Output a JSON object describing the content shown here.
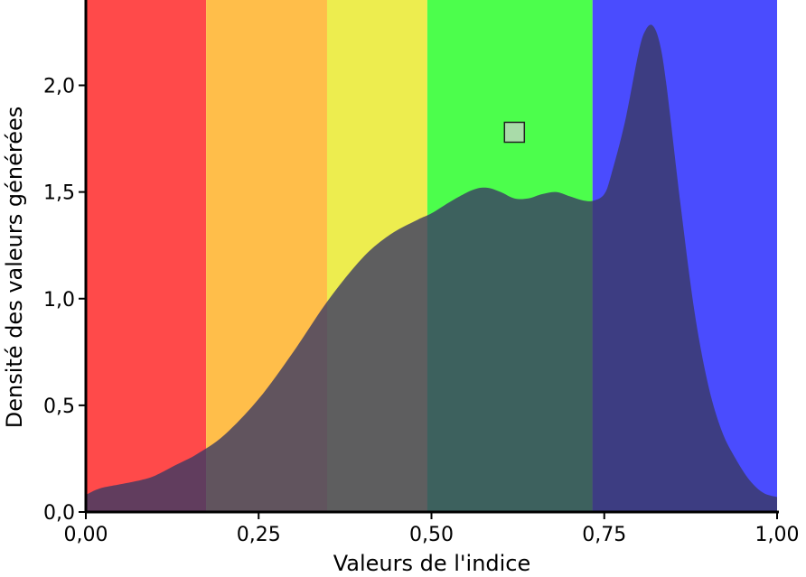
{
  "chart_data": {
    "type": "area",
    "title": "",
    "xlabel": "Valeurs de l'indice",
    "ylabel": "Densité des valeurs générées",
    "xlim": [
      0,
      1
    ],
    "ylim": [
      0,
      2.4
    ],
    "x_ticks": [
      {
        "value": 0,
        "label": "0,00"
      },
      {
        "value": 0.25,
        "label": "0,25"
      },
      {
        "value": 0.5,
        "label": "0,50"
      },
      {
        "value": 0.75,
        "label": "0,75"
      },
      {
        "value": 1,
        "label": "1,00"
      }
    ],
    "y_ticks": [
      {
        "value": 0,
        "label": "0,0"
      },
      {
        "value": 0.5,
        "label": "0,5"
      },
      {
        "value": 1,
        "label": "1,0"
      },
      {
        "value": 1.5,
        "label": "1,5"
      },
      {
        "value": 2,
        "label": "2,0"
      }
    ],
    "bands": [
      {
        "from": 0.0,
        "to": 0.174,
        "color": "#ff4a4a"
      },
      {
        "from": 0.174,
        "to": 0.349,
        "color": "#ffbe4a"
      },
      {
        "from": 0.349,
        "to": 0.494,
        "color": "#eded4f"
      },
      {
        "from": 0.494,
        "to": 0.733,
        "color": "#4cfe4c"
      },
      {
        "from": 0.733,
        "to": 1.0,
        "color": "#4a4cfe"
      }
    ],
    "density": {
      "fill": "#3a3a63",
      "fill_opacity": 0.8,
      "x": [
        0,
        0.02,
        0.05,
        0.08,
        0.1,
        0.13,
        0.16,
        0.2,
        0.25,
        0.3,
        0.35,
        0.4,
        0.44,
        0.48,
        0.5,
        0.53,
        0.56,
        0.58,
        0.6,
        0.62,
        0.64,
        0.66,
        0.68,
        0.7,
        0.72,
        0.735,
        0.75,
        0.76,
        0.78,
        0.8,
        0.81,
        0.82,
        0.83,
        0.84,
        0.86,
        0.88,
        0.9,
        0.92,
        0.94,
        0.96,
        0.98,
        1.0
      ],
      "y": [
        0.08,
        0.11,
        0.13,
        0.15,
        0.17,
        0.22,
        0.27,
        0.36,
        0.53,
        0.75,
        0.99,
        1.19,
        1.3,
        1.37,
        1.4,
        1.46,
        1.51,
        1.52,
        1.5,
        1.47,
        1.47,
        1.49,
        1.5,
        1.48,
        1.46,
        1.46,
        1.49,
        1.58,
        1.83,
        2.16,
        2.26,
        2.28,
        2.2,
        2.0,
        1.45,
        0.95,
        0.6,
        0.38,
        0.25,
        0.15,
        0.09,
        0.07
      ]
    },
    "marker": {
      "x": 0.62,
      "y": 1.78,
      "shape": "square",
      "fill": "#a9dba9",
      "stroke": "#222222"
    },
    "grid": false,
    "legend": "none"
  }
}
